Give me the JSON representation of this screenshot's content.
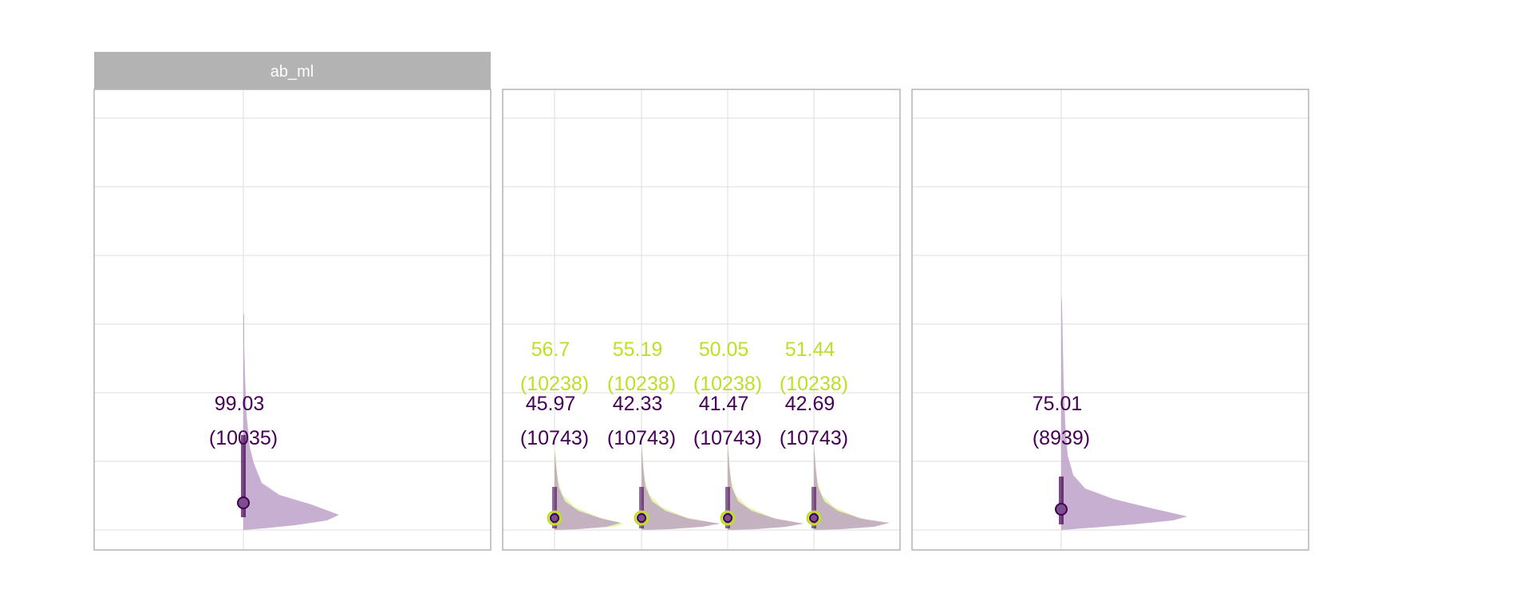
{
  "colors": {
    "group_a": "#440154",
    "group_b": "#bddf26",
    "violin_a": "#b99bc6",
    "violin_b": "#e2f29a",
    "strip_bg": "#b3b3b3",
    "panel_border": "#b3b3b3",
    "grid": "#dedede"
  },
  "chart_data": [
    {
      "type": "violin",
      "strip_label": "ab_ml",
      "series": [
        {
          "group": "a",
          "labels": [
            {
              "value": "99.03",
              "n": "(10035)"
            }
          ],
          "median": [
            0.8
          ],
          "ci": [
            0.3,
            1.5
          ]
        }
      ]
    },
    {
      "type": "violin",
      "strip_label": "",
      "series": [
        {
          "group": "b",
          "labels": [
            {
              "value": "56.7",
              "n": "(10238)"
            },
            {
              "value": "55.19",
              "n": "(10238)"
            },
            {
              "value": "50.05",
              "n": "(10238)"
            },
            {
              "value": "51.44",
              "n": "(10238)"
            }
          ]
        },
        {
          "group": "a",
          "labels": [
            {
              "value": "45.97",
              "n": "(10743)"
            },
            {
              "value": "42.33",
              "n": "(10743)"
            },
            {
              "value": "41.47",
              "n": "(10743)"
            },
            {
              "value": "42.69",
              "n": "(10743)"
            }
          ]
        }
      ]
    },
    {
      "type": "violin",
      "strip_label": "",
      "series": [
        {
          "group": "a",
          "labels": [
            {
              "value": "75.01",
              "n": "(8939)"
            }
          ]
        }
      ]
    }
  ]
}
